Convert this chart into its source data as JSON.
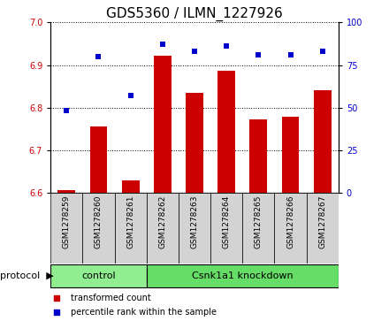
{
  "title": "GDS5360 / ILMN_1227926",
  "samples": [
    "GSM1278259",
    "GSM1278260",
    "GSM1278261",
    "GSM1278262",
    "GSM1278263",
    "GSM1278264",
    "GSM1278265",
    "GSM1278266",
    "GSM1278267"
  ],
  "transformed_counts": [
    6.605,
    6.755,
    6.628,
    6.921,
    6.835,
    6.887,
    6.773,
    6.778,
    6.84
  ],
  "percentile_ranks": [
    48,
    80,
    57,
    87,
    83,
    86,
    81,
    81,
    83
  ],
  "ylim_left": [
    6.6,
    7.0
  ],
  "ylim_right": [
    0,
    100
  ],
  "yticks_left": [
    6.6,
    6.7,
    6.8,
    6.9,
    7.0
  ],
  "yticks_right": [
    0,
    25,
    50,
    75,
    100
  ],
  "bar_color": "#cc0000",
  "dot_color": "#0000cc",
  "bar_baseline": 6.6,
  "groups": [
    {
      "label": "control",
      "start": 0,
      "end": 2,
      "color": "#90ee90"
    },
    {
      "label": "Csnk1a1 knockdown",
      "start": 3,
      "end": 8,
      "color": "#66dd66"
    }
  ],
  "protocol_label": "protocol",
  "legend_items": [
    {
      "label": "transformed count",
      "color": "#cc0000"
    },
    {
      "label": "percentile rank within the sample",
      "color": "#0000cc"
    }
  ],
  "title_fontsize": 11,
  "tick_fontsize": 7,
  "label_fontsize": 8,
  "sample_label_fontsize": 6.5,
  "bg_gray": "#d3d3d3"
}
